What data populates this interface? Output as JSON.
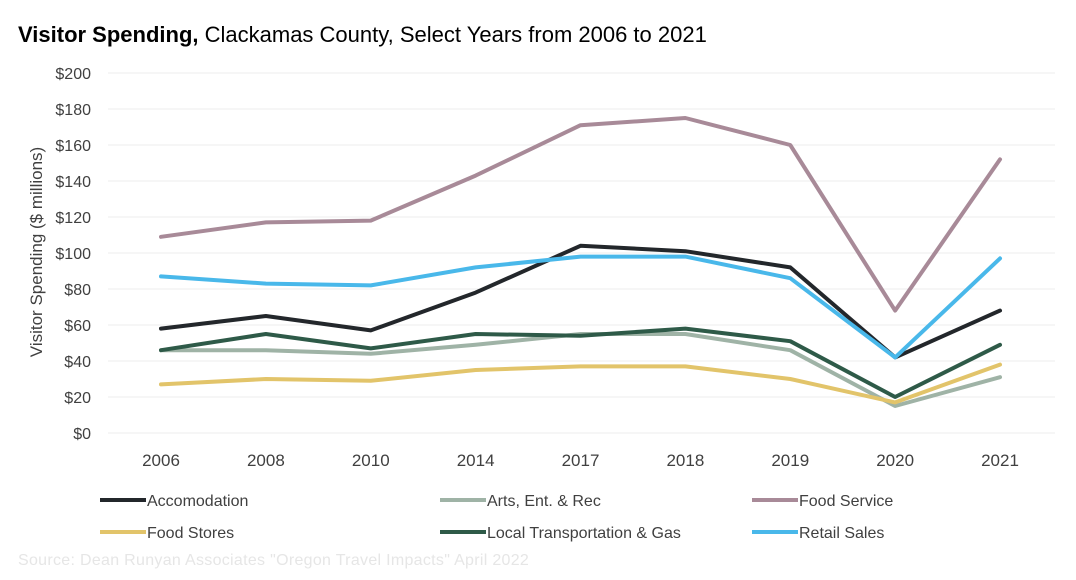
{
  "title": {
    "bold": "Visitor Spending,",
    "rest": " Clackamas County, Select Years from 2006 to 2021"
  },
  "source": "Source: Dean Runyan Associates \"Oregon Travel Impacts\" April 2022",
  "chart_data": {
    "type": "line",
    "title": "Visitor Spending, Clackamas County, Select Years from 2006 to 2021",
    "xlabel": "",
    "ylabel": "Visitor Spending ($ millions)",
    "x": [
      "2006",
      "2008",
      "2010",
      "2014",
      "2017",
      "2018",
      "2019",
      "2020",
      "2021"
    ],
    "ylim": [
      0,
      200
    ],
    "yticks": [
      0,
      20,
      40,
      60,
      80,
      100,
      120,
      140,
      160,
      180,
      200
    ],
    "ytick_labels": [
      "$0",
      "$20",
      "$40",
      "$60",
      "$80",
      "$100",
      "$120",
      "$140",
      "$160",
      "$180",
      "$200"
    ],
    "grid": true,
    "legend_position": "bottom",
    "series": [
      {
        "name": "Accomodation",
        "color": "#23272b",
        "values": [
          58,
          65,
          57,
          78,
          104,
          101,
          92,
          42,
          68
        ]
      },
      {
        "name": "Arts, Ent. & Rec",
        "color": "#9fb3a6",
        "values": [
          46,
          46,
          44,
          49,
          55,
          55,
          46,
          15,
          31
        ]
      },
      {
        "name": "Food Service",
        "color": "#a88a98",
        "values": [
          109,
          117,
          118,
          143,
          171,
          175,
          160,
          68,
          152
        ]
      },
      {
        "name": "Food Stores",
        "color": "#e2c46a",
        "values": [
          27,
          30,
          29,
          35,
          37,
          37,
          30,
          17,
          38
        ]
      },
      {
        "name": "Local Transportation & Gas",
        "color": "#2e5a48",
        "values": [
          46,
          55,
          47,
          55,
          54,
          58,
          51,
          20,
          49
        ]
      },
      {
        "name": "Retail Sales",
        "color": "#49b8ea",
        "values": [
          87,
          83,
          82,
          92,
          98,
          98,
          86,
          42,
          97
        ]
      }
    ]
  }
}
